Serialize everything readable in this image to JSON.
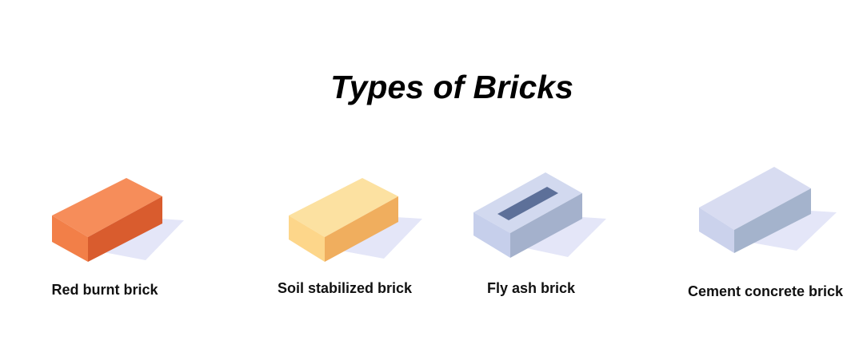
{
  "title": "Types of Bricks",
  "bricks": [
    {
      "label": "Red burnt brick",
      "top_color": "#F68D5A",
      "front_color": "#F27F48",
      "side_color": "#D95C2E",
      "shadow_color": "#E4E6F8"
    },
    {
      "label": "Soil stabilized brick",
      "top_color": "#FCE1A1",
      "front_color": "#FDD68A",
      "side_color": "#F0AE5E",
      "shadow_color": "#E4E6F8"
    },
    {
      "label": "Fly ash brick",
      "top_color": "#D2D9EF",
      "front_color": "#C6CFEB",
      "side_color": "#A4B1CC",
      "hole_color": "#5D7099",
      "shadow_color": "#E4E6F8"
    },
    {
      "label": "Cement concrete brick",
      "top_color": "#D8DCF1",
      "front_color": "#CBD2EC",
      "side_color": "#A4B3CC",
      "shadow_color": "#E4E6F8"
    }
  ]
}
